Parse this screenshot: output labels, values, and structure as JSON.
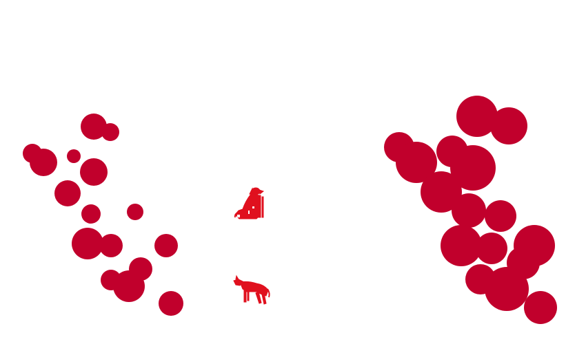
{
  "scene": {
    "background_color": "#ffffff",
    "dot_color": "#c1002c",
    "figure_color": "#e0101e"
  },
  "figures": [
    {
      "icon": "sitting-dog-icon"
    },
    {
      "icon": "standing-hyena-icon"
    }
  ]
}
